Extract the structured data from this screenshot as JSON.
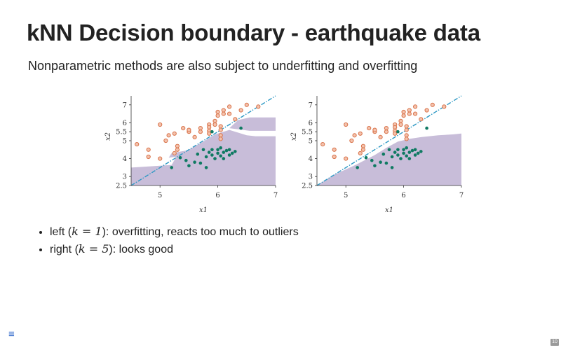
{
  "slide": {
    "title": "kNN Decision boundary - earthquake data",
    "subtitle": "Nonparametric methods are also subject to underfitting and overfitting",
    "page_number": "10",
    "menu_icon": "hamburger-menu-icon"
  },
  "bullets": [
    {
      "pre": "left (",
      "math_var": "k",
      "math_eq": " = 1",
      "post": "): overfitting, reacts too much to outliers"
    },
    {
      "pre": "right (",
      "math_var": "k",
      "math_eq": " = 5",
      "post": "): looks good"
    }
  ],
  "colors": {
    "region": "#c8bdd9",
    "class_orange": "#d9734a",
    "class_green": "#0f7a62",
    "boundary_line": "#2c98c4"
  },
  "chart_data": [
    {
      "type": "scatter",
      "panel": "left",
      "k": 1,
      "xlabel": "x1",
      "ylabel": "x2",
      "xlim": [
        4.5,
        7.0
      ],
      "ylim": [
        2.5,
        7.5
      ],
      "xticks": [
        "5",
        "6",
        "7"
      ],
      "yticks": [
        "2.5",
        "3",
        "4",
        "5",
        "5.5",
        "6",
        "7"
      ],
      "linear_boundary": [
        [
          4.5,
          2.5
        ],
        [
          7.0,
          7.5
        ]
      ],
      "region": [
        [
          4.5,
          2.5
        ],
        [
          4.5,
          3.5
        ],
        [
          5.0,
          3.6
        ],
        [
          5.2,
          3.65
        ],
        [
          5.3,
          4.2
        ],
        [
          5.5,
          4.5
        ],
        [
          5.75,
          4.95
        ],
        [
          5.95,
          5.35
        ],
        [
          6.2,
          5.6
        ],
        [
          6.5,
          5.3
        ],
        [
          6.65,
          5.25
        ],
        [
          7.0,
          5.25
        ],
        [
          7.0,
          2.5
        ]
      ],
      "region_islands": [
        [
          [
            5.15,
            4.05
          ],
          [
            5.4,
            4.15
          ],
          [
            5.65,
            4.5
          ],
          [
            5.45,
            4.45
          ],
          [
            5.2,
            4.3
          ]
        ],
        [
          [
            6.2,
            5.7
          ],
          [
            6.35,
            6.15
          ],
          [
            6.55,
            6.3
          ],
          [
            7.0,
            6.3
          ],
          [
            7.0,
            5.55
          ],
          [
            6.55,
            5.55
          ]
        ]
      ],
      "series": [
        {
          "class": "orange",
          "points": [
            [
              4.6,
              4.8
            ],
            [
              4.8,
              4.5
            ],
            [
              5.0,
              5.9
            ],
            [
              4.8,
              4.1
            ],
            [
              5.0,
              4.0
            ],
            [
              5.1,
              5.0
            ],
            [
              5.15,
              5.3
            ],
            [
              5.25,
              5.4
            ],
            [
              5.3,
              4.7
            ],
            [
              5.3,
              4.5
            ],
            [
              5.5,
              5.5
            ],
            [
              5.5,
              5.6
            ],
            [
              5.6,
              5.2
            ],
            [
              5.7,
              5.7
            ],
            [
              5.7,
              5.5
            ],
            [
              5.85,
              5.9
            ],
            [
              5.85,
              5.75
            ],
            [
              5.85,
              5.55
            ],
            [
              5.85,
              5.4
            ],
            [
              5.95,
              6.1
            ],
            [
              5.95,
              5.9
            ],
            [
              6.05,
              5.8
            ],
            [
              6.05,
              5.6
            ],
            [
              6.05,
              5.3
            ],
            [
              6.05,
              5.1
            ],
            [
              6.1,
              6.7
            ],
            [
              6.1,
              6.5
            ],
            [
              6.2,
              6.5
            ],
            [
              6.3,
              6.2
            ],
            [
              6.0,
              6.6
            ],
            [
              6.0,
              6.4
            ],
            [
              6.2,
              6.9
            ],
            [
              6.4,
              6.7
            ],
            [
              6.5,
              7.0
            ],
            [
              6.7,
              6.9
            ],
            [
              5.4,
              5.7
            ],
            [
              5.25,
              4.3
            ]
          ]
        },
        {
          "class": "green",
          "points": [
            [
              5.2,
              3.5
            ],
            [
              5.35,
              4.05
            ],
            [
              5.45,
              3.9
            ],
            [
              5.5,
              3.6
            ],
            [
              5.6,
              3.8
            ],
            [
              5.7,
              3.75
            ],
            [
              5.8,
              3.5
            ],
            [
              5.8,
              4.1
            ],
            [
              5.85,
              4.35
            ],
            [
              5.9,
              4.5
            ],
            [
              5.9,
              4.2
            ],
            [
              5.95,
              4.0
            ],
            [
              6.0,
              4.5
            ],
            [
              6.0,
              4.3
            ],
            [
              6.05,
              4.15
            ],
            [
              6.05,
              4.6
            ],
            [
              6.1,
              4.35
            ],
            [
              6.1,
              4.0
            ],
            [
              6.15,
              4.45
            ],
            [
              6.2,
              4.2
            ],
            [
              6.2,
              4.5
            ],
            [
              6.25,
              4.3
            ],
            [
              6.3,
              4.4
            ],
            [
              6.4,
              5.7
            ],
            [
              5.9,
              5.5
            ],
            [
              5.75,
              4.5
            ],
            [
              5.65,
              4.25
            ]
          ]
        }
      ]
    },
    {
      "type": "scatter",
      "panel": "right",
      "k": 5,
      "xlabel": "x1",
      "ylabel": "x2",
      "xlim": [
        4.5,
        7.0
      ],
      "ylim": [
        2.5,
        7.5
      ],
      "xticks": [
        "5",
        "6",
        "7"
      ],
      "yticks": [
        "2.5",
        "3",
        "4",
        "5",
        "5.5",
        "6",
        "7"
      ],
      "linear_boundary": [
        [
          4.5,
          2.5
        ],
        [
          7.0,
          7.5
        ]
      ],
      "region": [
        [
          4.5,
          2.5
        ],
        [
          4.8,
          3.1
        ],
        [
          5.2,
          3.7
        ],
        [
          5.5,
          4.2
        ],
        [
          5.7,
          4.6
        ],
        [
          5.9,
          4.95
        ],
        [
          6.1,
          5.1
        ],
        [
          6.3,
          5.2
        ],
        [
          6.6,
          5.3
        ],
        [
          6.85,
          5.35
        ],
        [
          7.0,
          5.4
        ],
        [
          7.0,
          2.5
        ]
      ],
      "region_islands": [],
      "series": [
        {
          "class": "orange",
          "points": [
            [
              4.6,
              4.8
            ],
            [
              4.8,
              4.5
            ],
            [
              5.0,
              5.9
            ],
            [
              4.8,
              4.1
            ],
            [
              5.0,
              4.0
            ],
            [
              5.1,
              5.0
            ],
            [
              5.15,
              5.3
            ],
            [
              5.25,
              5.4
            ],
            [
              5.3,
              4.7
            ],
            [
              5.3,
              4.5
            ],
            [
              5.5,
              5.5
            ],
            [
              5.5,
              5.6
            ],
            [
              5.6,
              5.2
            ],
            [
              5.7,
              5.7
            ],
            [
              5.7,
              5.5
            ],
            [
              5.85,
              5.9
            ],
            [
              5.85,
              5.75
            ],
            [
              5.85,
              5.55
            ],
            [
              5.85,
              5.4
            ],
            [
              5.95,
              6.1
            ],
            [
              5.95,
              5.9
            ],
            [
              6.05,
              5.8
            ],
            [
              6.05,
              5.6
            ],
            [
              6.05,
              5.3
            ],
            [
              6.05,
              5.1
            ],
            [
              6.1,
              6.7
            ],
            [
              6.1,
              6.5
            ],
            [
              6.2,
              6.5
            ],
            [
              6.3,
              6.2
            ],
            [
              6.0,
              6.6
            ],
            [
              6.0,
              6.4
            ],
            [
              6.2,
              6.9
            ],
            [
              6.4,
              6.7
            ],
            [
              6.5,
              7.0
            ],
            [
              6.7,
              6.9
            ],
            [
              5.4,
              5.7
            ],
            [
              5.25,
              4.3
            ]
          ]
        },
        {
          "class": "green",
          "points": [
            [
              5.2,
              3.5
            ],
            [
              5.35,
              4.05
            ],
            [
              5.45,
              3.9
            ],
            [
              5.5,
              3.6
            ],
            [
              5.6,
              3.8
            ],
            [
              5.7,
              3.75
            ],
            [
              5.8,
              3.5
            ],
            [
              5.8,
              4.1
            ],
            [
              5.85,
              4.35
            ],
            [
              5.9,
              4.5
            ],
            [
              5.9,
              4.2
            ],
            [
              5.95,
              4.0
            ],
            [
              6.0,
              4.5
            ],
            [
              6.0,
              4.3
            ],
            [
              6.05,
              4.15
            ],
            [
              6.05,
              4.6
            ],
            [
              6.1,
              4.35
            ],
            [
              6.1,
              4.0
            ],
            [
              6.15,
              4.45
            ],
            [
              6.2,
              4.2
            ],
            [
              6.2,
              4.5
            ],
            [
              6.25,
              4.3
            ],
            [
              6.3,
              4.4
            ],
            [
              6.4,
              5.7
            ],
            [
              5.9,
              5.5
            ],
            [
              5.75,
              4.5
            ],
            [
              5.65,
              4.25
            ]
          ]
        }
      ]
    }
  ]
}
